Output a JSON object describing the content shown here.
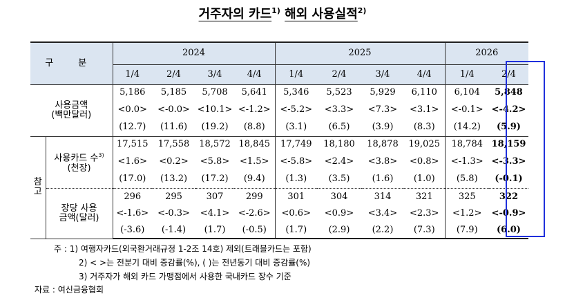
{
  "title": {
    "text": "거주자의 카드",
    "sup1": "1)",
    "text2": "해외 사용실적",
    "sup2": "2)"
  },
  "header": {
    "gubun": "구 분",
    "years": [
      "2024",
      "2025",
      "2026"
    ],
    "quarters": [
      "1/4",
      "2/4",
      "3/4",
      "4/4",
      "1/4",
      "2/4",
      "3/4",
      "4/4",
      "1/4",
      "2/4"
    ]
  },
  "sections": {
    "usage": {
      "label_line1": "사용금액",
      "label_line2": "(백만달러)",
      "values": [
        "5,186",
        "5,185",
        "5,708",
        "5,641",
        "5,346",
        "5,523",
        "5,929",
        "6,110",
        "6,104",
        "5,848"
      ],
      "qoq": [
        "<0.0>",
        "<-0.0>",
        "<10.1>",
        "<-1.2>",
        "<-5.2>",
        "<3.3>",
        "<7.3>",
        "<3.1>",
        "<-0.1>",
        "<-4.2>"
      ],
      "yoy": [
        "(12.7)",
        "(11.6)",
        "(19.2)",
        "(8.8)",
        "(3.1)",
        "(6.5)",
        "(3.9)",
        "(8.3)",
        "(14.2)",
        "(5.9)"
      ]
    },
    "reference_label": "참고",
    "cards": {
      "label_line1": "사용카드 수",
      "label_sup": "3)",
      "label_line2": "(천장)",
      "values": [
        "17,515",
        "17,558",
        "18,572",
        "18,845",
        "17,749",
        "18,180",
        "18,878",
        "19,025",
        "18,784",
        "18,159"
      ],
      "qoq": [
        "<1.6>",
        "<0.2>",
        "<5.8>",
        "<1.5>",
        "<-5.8>",
        "<2.4>",
        "<3.8>",
        "<0.8>",
        "<-1.3>",
        "<-3.3>"
      ],
      "yoy": [
        "(17.0)",
        "(13.2)",
        "(17.2)",
        "(9.4)",
        "(1.3)",
        "(3.5)",
        "(1.6)",
        "(1.0)",
        "(5.8)",
        "(-0.1)"
      ]
    },
    "per_card": {
      "label_line1": "장당 사용",
      "label_line2": "금액(달러)",
      "values": [
        "296",
        "295",
        "307",
        "299",
        "301",
        "304",
        "314",
        "321",
        "325",
        "322"
      ],
      "qoq": [
        "<-1.6>",
        "<-0.3>",
        "<4.1>",
        "<-2.6>",
        "<0.6>",
        "<0.9>",
        "<3.4>",
        "<2.3>",
        "<1.2>",
        "<-0.9>"
      ],
      "yoy": [
        "(-3.6)",
        "(-1.4)",
        "(1.7)",
        "(-0.5)",
        "(1.7)",
        "(2.9)",
        "(2.2)",
        "(7.3)",
        "(7.9)",
        "(6.0)"
      ]
    }
  },
  "notes": {
    "n1": "주 : 1) 여행자카드(외국환거래규정 1-2조 14호) 제외(트래블카드는 포함)",
    "n2": "2) <     >는 전분기 대비 증감률(%), (     )는 전년동기 대비 증감률(%)",
    "n3": "3) 거주자가 해외 카드 가맹점에서 사용한 국내카드 장수 기준",
    "source": "자료 : 여신금융협회"
  },
  "colors": {
    "header_bg": "#dbe5f1",
    "highlight_border": "#1f2fdc"
  }
}
